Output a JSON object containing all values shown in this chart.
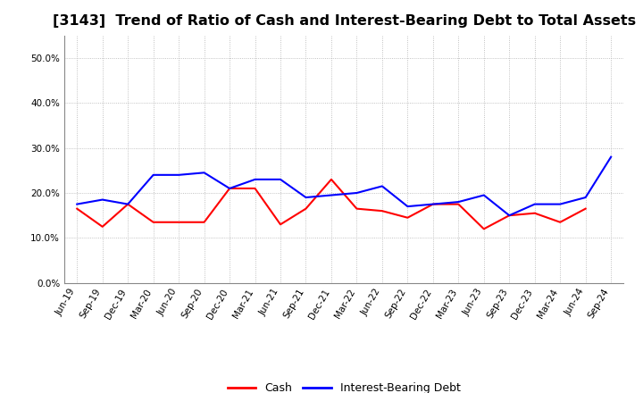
{
  "title": "[3143]  Trend of Ratio of Cash and Interest-Bearing Debt to Total Assets",
  "x_labels": [
    "Jun-19",
    "Sep-19",
    "Dec-19",
    "Mar-20",
    "Jun-20",
    "Sep-20",
    "Dec-20",
    "Mar-21",
    "Jun-21",
    "Sep-21",
    "Dec-21",
    "Mar-22",
    "Jun-22",
    "Sep-22",
    "Dec-22",
    "Mar-23",
    "Jun-23",
    "Sep-23",
    "Dec-23",
    "Mar-24",
    "Jun-24",
    "Sep-24"
  ],
  "cash": [
    0.165,
    0.125,
    0.175,
    0.135,
    0.135,
    0.135,
    0.21,
    0.21,
    0.13,
    0.165,
    0.23,
    0.165,
    0.16,
    0.145,
    0.175,
    0.175,
    0.12,
    0.15,
    0.155,
    0.135,
    0.165,
    null
  ],
  "ibd": [
    0.175,
    0.185,
    0.175,
    0.24,
    0.24,
    0.245,
    0.21,
    0.23,
    0.23,
    0.19,
    0.195,
    0.2,
    0.215,
    0.17,
    0.175,
    0.18,
    0.195,
    0.15,
    0.175,
    0.175,
    0.19,
    0.28
  ],
  "cash_color": "#ff0000",
  "ibd_color": "#0000ff",
  "background_color": "#ffffff",
  "plot_bg_color": "#ffffff",
  "grid_color": "#b0b0b0",
  "ylim": [
    0.0,
    0.55
  ],
  "yticks": [
    0.0,
    0.1,
    0.2,
    0.3,
    0.4,
    0.5
  ],
  "legend_cash": "Cash",
  "legend_ibd": "Interest-Bearing Debt",
  "title_fontsize": 11.5,
  "axis_fontsize": 7.5,
  "legend_fontsize": 9
}
